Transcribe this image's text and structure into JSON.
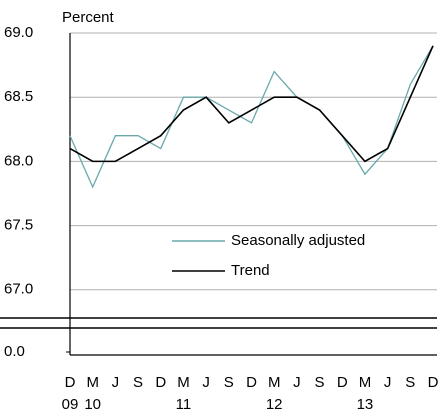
{
  "chart_data": {
    "type": "line",
    "y_label": "Percent",
    "categories": [
      "D",
      "M",
      "J",
      "S",
      "D",
      "M",
      "J",
      "S",
      "D",
      "M",
      "J",
      "S",
      "D",
      "M",
      "J",
      "S",
      "D"
    ],
    "year_labels": [
      "09",
      "10",
      null,
      null,
      null,
      "11",
      null,
      null,
      null,
      "12",
      null,
      null,
      null,
      "13",
      null,
      null,
      null
    ],
    "series": [
      {
        "name": "Seasonally adjusted",
        "color": "#6aa9ab",
        "values": [
          68.2,
          67.8,
          68.2,
          68.2,
          68.1,
          68.5,
          68.5,
          68.4,
          68.3,
          68.7,
          68.5,
          68.4,
          68.2,
          67.9,
          68.1,
          68.6,
          68.9
        ]
      },
      {
        "name": "Trend",
        "color": "#000000",
        "values": [
          68.1,
          68.0,
          68.0,
          68.1,
          68.2,
          68.4,
          68.5,
          68.3,
          68.4,
          68.5,
          68.5,
          68.4,
          68.2,
          68.0,
          68.1,
          68.5,
          68.9
        ]
      }
    ],
    "ylim": [
      66.78,
      69.0
    ],
    "yticks": [
      {
        "value": 67,
        "label": "67.0"
      },
      {
        "value": 67.5,
        "label": "67.5"
      },
      {
        "value": 68,
        "label": "68.0"
      },
      {
        "value": 68.5,
        "label": "68.5"
      },
      {
        "value": 69,
        "label": "69.0"
      }
    ],
    "lower_ticks": [
      {
        "value": 0,
        "label": "0.0"
      }
    ],
    "grid": true
  }
}
